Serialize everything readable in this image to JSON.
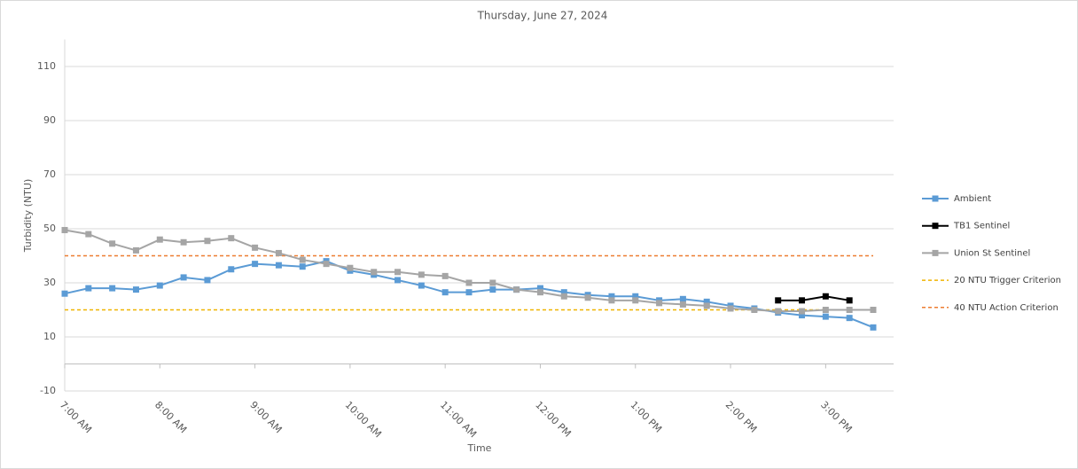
{
  "chart_data": {
    "type": "line",
    "title": "Thursday, June 27, 2024",
    "x_label": "Time",
    "y_label": "Turbidity (NTU)",
    "categories": [
      "7:00 AM",
      null,
      null,
      null,
      "8:00 AM",
      null,
      null,
      null,
      "9:00 AM",
      null,
      null,
      null,
      "10:00 AM",
      null,
      null,
      null,
      "11:00 AM",
      null,
      null,
      null,
      "12:00 PM",
      null,
      null,
      null,
      "1:00 PM",
      null,
      null,
      null,
      "2:00 PM",
      null,
      null,
      null,
      "3:00 PM",
      null,
      null
    ],
    "series": [
      {
        "name": "Ambient",
        "color": "#5b9bd5",
        "values": [
          26,
          28,
          28,
          27.5,
          29,
          32,
          31,
          35,
          37,
          36.5,
          36,
          38,
          34.5,
          33,
          31,
          29,
          26.5,
          26.5,
          27.5,
          27.5,
          28,
          26.5,
          25.5,
          25,
          25,
          23.5,
          24,
          23,
          21.5,
          20.5,
          19,
          18,
          17.5,
          17,
          13.5
        ]
      },
      {
        "name": "TB1 Sentinel",
        "color": "#000000",
        "values": [
          null,
          null,
          null,
          null,
          null,
          null,
          null,
          null,
          null,
          null,
          null,
          null,
          null,
          null,
          null,
          null,
          null,
          null,
          null,
          null,
          null,
          null,
          null,
          null,
          null,
          null,
          null,
          null,
          null,
          null,
          23.5,
          23.5,
          25,
          23.5,
          null
        ]
      },
      {
        "name": "Union St Sentinel",
        "color": "#a5a5a5",
        "values": [
          49.5,
          48,
          44.5,
          42,
          46,
          45,
          45.5,
          46.5,
          43,
          41,
          38.5,
          37,
          35.5,
          34,
          34,
          33,
          32.5,
          30,
          30,
          27.5,
          26.5,
          25,
          24.5,
          23.5,
          23.5,
          22.5,
          22,
          21.5,
          20.5,
          20,
          19.5,
          19.5,
          20,
          20,
          20
        ]
      }
    ],
    "reference_lines": [
      {
        "name": "20 NTU Trigger Criterion",
        "value": 20,
        "color": "#f0b400"
      },
      {
        "name": "40 NTU Action Criterion",
        "value": 40,
        "color": "#ed7d31"
      }
    ],
    "ylim": [
      -10,
      120
    ],
    "yticks": [
      -10,
      10,
      30,
      50,
      70,
      90,
      110
    ],
    "grid": true,
    "legend": "right"
  }
}
